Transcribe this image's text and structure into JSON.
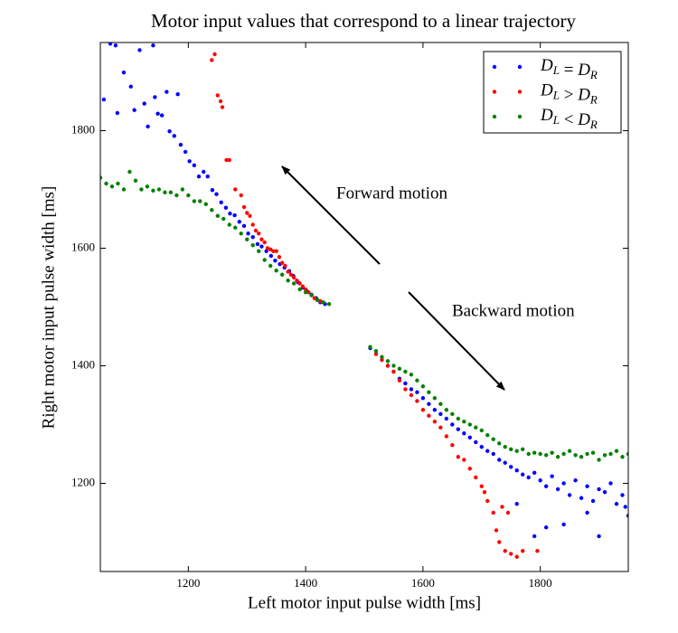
{
  "chart_data": {
    "type": "scatter",
    "title": "Motor input values that correspond to a linear trajectory",
    "x_label": "Left motor input pulse width [ms]",
    "y_label": "Right motor input pulse width [ms]",
    "xlim": [
      1050,
      1950
    ],
    "ylim": [
      1050,
      1950
    ],
    "xticks": [
      1200,
      1400,
      1600,
      1800
    ],
    "yticks": [
      1200,
      1400,
      1600,
      1800
    ],
    "legend": "upper right",
    "annotations": [
      "Forward motion",
      "Backward motion"
    ],
    "series": [
      {
        "name": "DL = DR",
        "color": "#0000ff",
        "x": [
          1056,
          1067,
          1076,
          1079,
          1090,
          1102,
          1108,
          1117,
          1125,
          1131,
          1140,
          1143,
          1148,
          1155,
          1163,
          1168,
          1176,
          1182,
          1187,
          1195,
          1202,
          1210,
          1218,
          1226,
          1233,
          1241,
          1248,
          1256,
          1264,
          1271,
          1279,
          1287,
          1295,
          1302,
          1310,
          1318,
          1325,
          1333,
          1341,
          1348,
          1356,
          1364,
          1372,
          1379,
          1387,
          1395,
          1402,
          1410,
          1418,
          1425,
          1433,
          1510,
          1520,
          1530,
          1540,
          1550,
          1560,
          1570,
          1580,
          1590,
          1600,
          1610,
          1620,
          1630,
          1640,
          1650,
          1660,
          1670,
          1680,
          1690,
          1700,
          1710,
          1720,
          1730,
          1740,
          1750,
          1760,
          1770,
          1780,
          1790,
          1800,
          1810,
          1820,
          1830,
          1840,
          1850,
          1860,
          1870,
          1880,
          1890,
          1900,
          1910,
          1920,
          1930,
          1940,
          1950,
          1760,
          1790,
          1810,
          1840,
          1880,
          1900,
          1945
        ],
        "values": [
          1853,
          1948,
          1945,
          1830,
          1899,
          1875,
          1835,
          1937,
          1846,
          1807,
          1945,
          1857,
          1829,
          1826,
          1866,
          1799,
          1791,
          1862,
          1776,
          1764,
          1748,
          1741,
          1722,
          1730,
          1722,
          1699,
          1692,
          1678,
          1669,
          1659,
          1656,
          1645,
          1638,
          1625,
          1619,
          1607,
          1603,
          1595,
          1587,
          1579,
          1573,
          1567,
          1561,
          1553,
          1542,
          1533,
          1527,
          1521,
          1515,
          1508,
          1505,
          1430,
          1420,
          1410,
          1400,
          1390,
          1378,
          1370,
          1360,
          1355,
          1345,
          1335,
          1325,
          1318,
          1310,
          1300,
          1292,
          1285,
          1278,
          1270,
          1262,
          1255,
          1250,
          1240,
          1235,
          1228,
          1222,
          1215,
          1210,
          1218,
          1205,
          1195,
          1212,
          1190,
          1200,
          1180,
          1205,
          1175,
          1195,
          1170,
          1190,
          1185,
          1200,
          1165,
          1180,
          1145,
          1165,
          1110,
          1125,
          1130,
          1150,
          1110,
          1160
        ]
      },
      {
        "name": "DL > DR",
        "color": "#ff0000",
        "x": [
          1240,
          1245,
          1250,
          1255,
          1258,
          1265,
          1270,
          1280,
          1290,
          1295,
          1300,
          1305,
          1310,
          1315,
          1320,
          1325,
          1330,
          1335,
          1340,
          1345,
          1350,
          1355,
          1360,
          1365,
          1370,
          1375,
          1380,
          1385,
          1390,
          1395,
          1400,
          1405,
          1410,
          1415,
          1420,
          1425,
          1520,
          1530,
          1540,
          1550,
          1560,
          1570,
          1580,
          1590,
          1600,
          1610,
          1620,
          1630,
          1640,
          1650,
          1660,
          1670,
          1680,
          1690,
          1700,
          1705,
          1710,
          1720,
          1725,
          1730,
          1740,
          1750,
          1760,
          1770,
          1795,
          1745,
          1735
        ],
        "values": [
          1920,
          1930,
          1860,
          1850,
          1840,
          1750,
          1750,
          1700,
          1690,
          1670,
          1660,
          1655,
          1640,
          1630,
          1625,
          1615,
          1610,
          1600,
          1598,
          1595,
          1595,
          1585,
          1575,
          1570,
          1560,
          1555,
          1550,
          1545,
          1540,
          1535,
          1530,
          1525,
          1520,
          1515,
          1512,
          1510,
          1420,
          1410,
          1400,
          1390,
          1375,
          1360,
          1350,
          1340,
          1325,
          1315,
          1305,
          1295,
          1280,
          1265,
          1245,
          1240,
          1225,
          1210,
          1195,
          1185,
          1170,
          1150,
          1120,
          1100,
          1085,
          1080,
          1075,
          1085,
          1085,
          1150,
          1160
        ]
      },
      {
        "name": "DL < DR",
        "color": "#008000",
        "x": [
          1050,
          1060,
          1070,
          1080,
          1090,
          1100,
          1110,
          1120,
          1130,
          1140,
          1150,
          1160,
          1170,
          1180,
          1190,
          1200,
          1210,
          1220,
          1230,
          1240,
          1250,
          1260,
          1270,
          1280,
          1290,
          1300,
          1310,
          1320,
          1330,
          1340,
          1350,
          1360,
          1370,
          1380,
          1390,
          1400,
          1410,
          1420,
          1430,
          1440,
          1510,
          1520,
          1530,
          1540,
          1550,
          1560,
          1570,
          1580,
          1590,
          1600,
          1610,
          1620,
          1630,
          1640,
          1650,
          1660,
          1670,
          1680,
          1690,
          1700,
          1710,
          1720,
          1730,
          1740,
          1750,
          1760,
          1770,
          1780,
          1790,
          1800,
          1810,
          1820,
          1830,
          1840,
          1850,
          1860,
          1870,
          1880,
          1890,
          1900,
          1910,
          1920,
          1930,
          1940,
          1950
        ],
        "values": [
          1720,
          1710,
          1705,
          1710,
          1700,
          1730,
          1715,
          1700,
          1705,
          1698,
          1700,
          1695,
          1695,
          1690,
          1700,
          1690,
          1680,
          1680,
          1675,
          1665,
          1655,
          1650,
          1640,
          1635,
          1625,
          1615,
          1605,
          1595,
          1580,
          1570,
          1562,
          1555,
          1545,
          1540,
          1530,
          1525,
          1520,
          1512,
          1508,
          1505,
          1432,
          1425,
          1415,
          1408,
          1400,
          1395,
          1390,
          1385,
          1375,
          1365,
          1355,
          1345,
          1335,
          1325,
          1318,
          1310,
          1305,
          1300,
          1295,
          1290,
          1282,
          1275,
          1268,
          1262,
          1258,
          1255,
          1258,
          1250,
          1252,
          1250,
          1248,
          1252,
          1245,
          1250,
          1255,
          1248,
          1245,
          1250,
          1252,
          1240,
          1248,
          1250,
          1255,
          1245,
          1250
        ]
      }
    ]
  }
}
